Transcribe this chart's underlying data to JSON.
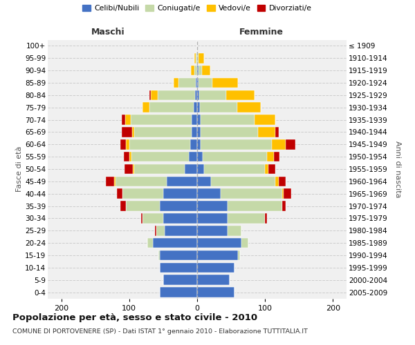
{
  "age_groups": [
    "0-4",
    "5-9",
    "10-14",
    "15-19",
    "20-24",
    "25-29",
    "30-34",
    "35-39",
    "40-44",
    "45-49",
    "50-54",
    "55-59",
    "60-64",
    "65-69",
    "70-74",
    "75-79",
    "80-84",
    "85-89",
    "90-94",
    "95-99",
    "100+"
  ],
  "birth_years": [
    "2005-2009",
    "2000-2004",
    "1995-1999",
    "1990-1994",
    "1985-1989",
    "1980-1984",
    "1975-1979",
    "1970-1974",
    "1965-1969",
    "1960-1964",
    "1955-1959",
    "1950-1954",
    "1945-1949",
    "1940-1944",
    "1935-1939",
    "1930-1934",
    "1925-1929",
    "1920-1924",
    "1915-1919",
    "1910-1914",
    "≤ 1909"
  ],
  "male": {
    "celibi": [
      55,
      50,
      55,
      55,
      65,
      48,
      50,
      55,
      50,
      45,
      18,
      12,
      10,
      8,
      8,
      5,
      3,
      2,
      0,
      0,
      0
    ],
    "coniugati": [
      0,
      0,
      0,
      2,
      8,
      12,
      30,
      50,
      60,
      75,
      75,
      85,
      90,
      85,
      90,
      65,
      55,
      25,
      4,
      2,
      0
    ],
    "vedovi": [
      0,
      0,
      0,
      0,
      0,
      0,
      0,
      0,
      0,
      2,
      2,
      3,
      5,
      3,
      8,
      10,
      10,
      8,
      5,
      2,
      0
    ],
    "divorziati": [
      0,
      0,
      0,
      0,
      0,
      2,
      3,
      8,
      8,
      12,
      12,
      8,
      8,
      15,
      5,
      0,
      2,
      0,
      0,
      0,
      0
    ]
  },
  "female": {
    "nubili": [
      55,
      48,
      55,
      60,
      65,
      45,
      45,
      45,
      35,
      20,
      10,
      8,
      5,
      5,
      5,
      4,
      3,
      2,
      2,
      0,
      0
    ],
    "coniugate": [
      0,
      0,
      0,
      3,
      10,
      20,
      55,
      80,
      90,
      95,
      90,
      95,
      105,
      85,
      80,
      55,
      40,
      20,
      5,
      2,
      0
    ],
    "vedove": [
      0,
      0,
      0,
      0,
      0,
      0,
      0,
      0,
      2,
      5,
      5,
      10,
      20,
      25,
      30,
      35,
      42,
      38,
      12,
      8,
      0
    ],
    "divorziate": [
      0,
      0,
      0,
      0,
      0,
      0,
      3,
      5,
      12,
      10,
      10,
      8,
      15,
      5,
      0,
      0,
      0,
      0,
      0,
      0,
      0
    ]
  },
  "colors": {
    "celibi": "#4472C4",
    "coniugati": "#c5d9a8",
    "vedovi": "#ffc000",
    "divorziati": "#c00000"
  },
  "title": "Popolazione per età, sesso e stato civile - 2010",
  "subtitle": "COMUNE DI PORTOVENERE (SP) - Dati ISTAT 1° gennaio 2010 - Elaborazione TUTTITALIA.IT",
  "xlim": 220,
  "ylabel_left": "Fasce di età",
  "ylabel_right": "Anni di nascita",
  "xlabel_left": "Maschi",
  "xlabel_right": "Femmine",
  "bg_color": "#f0f0f0",
  "legend_labels": [
    "Celibi/Nubili",
    "Coniugati/e",
    "Vedovi/e",
    "Divorziati/e"
  ]
}
